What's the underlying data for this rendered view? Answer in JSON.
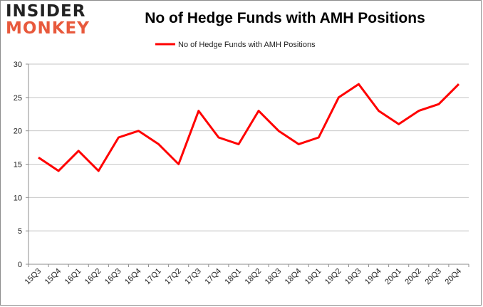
{
  "logo": {
    "line1": "INSIDER",
    "line2": "MONKEY"
  },
  "chart_data": {
    "type": "line",
    "title": "No of Hedge Funds with AMH Positions",
    "xlabel": "",
    "ylabel": "",
    "categories": [
      "15Q3",
      "15Q4",
      "16Q1",
      "16Q2",
      "16Q3",
      "16Q4",
      "17Q1",
      "17Q2",
      "17Q3",
      "17Q4",
      "18Q1",
      "18Q2",
      "18Q3",
      "18Q4",
      "19Q1",
      "19Q2",
      "19Q3",
      "19Q4",
      "20Q1",
      "20Q2",
      "20Q3",
      "20Q4"
    ],
    "series": [
      {
        "name": "No of Hedge Funds with AMH Positions",
        "color": "#ff0000",
        "values": [
          16,
          14,
          17,
          14,
          19,
          20,
          18,
          15,
          23,
          19,
          18,
          23,
          20,
          18,
          19,
          25,
          27,
          23,
          21,
          23,
          24,
          27
        ]
      }
    ],
    "ylim": [
      0,
      30
    ],
    "yticks": [
      0,
      5,
      10,
      15,
      20,
      25,
      30
    ],
    "grid": true,
    "legend": "top-center",
    "gridColor": "#c6c6c6",
    "axisColor": "#8c8c8c"
  }
}
